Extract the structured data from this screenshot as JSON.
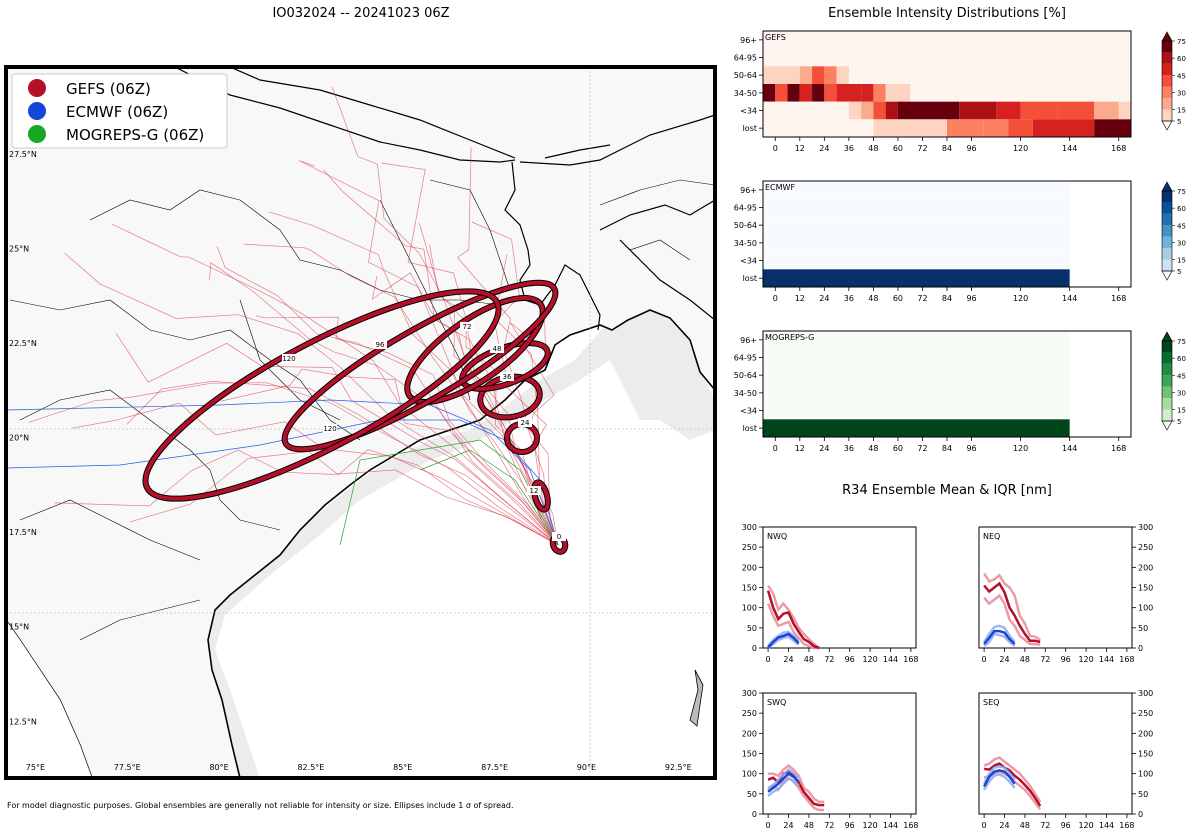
{
  "title": "IO032024 -- 20241023 06Z",
  "footnote": "For model diagnostic purposes. Global ensembles are generally not reliable for intensity or size. Ellipses include 1 σ of spread.",
  "map": {
    "legend": [
      {
        "label": "GEFS (06Z)",
        "color": "#b5102a"
      },
      {
        "label": "ECMWF (06Z)",
        "color": "#1446d9"
      },
      {
        "label": "MOGREPS-G (06Z)",
        "color": "#16a826"
      }
    ],
    "lon_ticks": [
      "75°E",
      "77.5°E",
      "80°E",
      "82.5°E",
      "85°E",
      "87.5°E",
      "90°E",
      "92.5°E"
    ],
    "lat_ticks": [
      "27.5°N",
      "25°N",
      "22.5°N",
      "20°N",
      "17.5°N",
      "15°N",
      "12.5°N"
    ],
    "lon_range": [
      74.2,
      93.5
    ],
    "lat_range": [
      11.0,
      29.8
    ],
    "track_labels": [
      "0",
      "12",
      "24",
      "36",
      "48",
      "72",
      "96",
      "120",
      "120"
    ]
  },
  "chart_data": [
    {
      "type": "heatmap",
      "title": "Ensemble Intensity Distributions [%]",
      "panel": "GEFS",
      "colormap": "Reds",
      "x_ticks": [
        0,
        12,
        24,
        36,
        48,
        60,
        72,
        84,
        96,
        120,
        144,
        168
      ],
      "x_range": [
        -6,
        174
      ],
      "y_categories": [
        "lost",
        "<34",
        "34-50",
        "50-64",
        "64-95",
        "96+"
      ],
      "colorbar_ticks": [
        5,
        15,
        30,
        45,
        60,
        75
      ],
      "cells": [
        {
          "row": "50-64",
          "x0": -6,
          "x1": 12,
          "v": 10
        },
        {
          "row": "50-64",
          "x0": 12,
          "x1": 18,
          "v": 20
        },
        {
          "row": "50-64",
          "x0": 18,
          "x1": 24,
          "v": 45
        },
        {
          "row": "50-64",
          "x0": 24,
          "x1": 30,
          "v": 25
        },
        {
          "row": "50-64",
          "x0": 30,
          "x1": 36,
          "v": 10
        },
        {
          "row": "34-50",
          "x0": -6,
          "x1": 0,
          "v": 80
        },
        {
          "row": "34-50",
          "x0": 0,
          "x1": 6,
          "v": 40
        },
        {
          "row": "34-50",
          "x0": 6,
          "x1": 12,
          "v": 80
        },
        {
          "row": "34-50",
          "x0": 12,
          "x1": 18,
          "v": 55
        },
        {
          "row": "34-50",
          "x0": 18,
          "x1": 24,
          "v": 80
        },
        {
          "row": "34-50",
          "x0": 24,
          "x1": 30,
          "v": 40
        },
        {
          "row": "34-50",
          "x0": 30,
          "x1": 42,
          "v": 60
        },
        {
          "row": "34-50",
          "x0": 42,
          "x1": 48,
          "v": 55
        },
        {
          "row": "34-50",
          "x0": 48,
          "x1": 54,
          "v": 25
        },
        {
          "row": "34-50",
          "x0": 54,
          "x1": 66,
          "v": 8
        },
        {
          "row": "<34",
          "x0": -6,
          "x1": 36,
          "v": 4
        },
        {
          "row": "<34",
          "x0": 36,
          "x1": 42,
          "v": 10
        },
        {
          "row": "<34",
          "x0": 42,
          "x1": 48,
          "v": 20
        },
        {
          "row": "<34",
          "x0": 48,
          "x1": 54,
          "v": 45
        },
        {
          "row": "<34",
          "x0": 54,
          "x1": 60,
          "v": 65
        },
        {
          "row": "<34",
          "x0": 60,
          "x1": 90,
          "v": 80
        },
        {
          "row": "<34",
          "x0": 90,
          "x1": 108,
          "v": 62
        },
        {
          "row": "<34",
          "x0": 108,
          "x1": 120,
          "v": 55
        },
        {
          "row": "<34",
          "x0": 120,
          "x1": 138,
          "v": 40
        },
        {
          "row": "<34",
          "x0": 138,
          "x1": 156,
          "v": 40
        },
        {
          "row": "<34",
          "x0": 156,
          "x1": 168,
          "v": 20
        },
        {
          "row": "<34",
          "x0": 168,
          "x1": 174,
          "v": 8
        },
        {
          "row": "lost",
          "x0": -6,
          "x1": 48,
          "v": 5
        },
        {
          "row": "lost",
          "x0": 48,
          "x1": 84,
          "v": 10
        },
        {
          "row": "lost",
          "x0": 84,
          "x1": 102,
          "v": 25
        },
        {
          "row": "lost",
          "x0": 102,
          "x1": 114,
          "v": 35
        },
        {
          "row": "lost",
          "x0": 114,
          "x1": 126,
          "v": 48
        },
        {
          "row": "lost",
          "x0": 126,
          "x1": 156,
          "v": 60
        },
        {
          "row": "lost",
          "x0": 156,
          "x1": 174,
          "v": 80
        }
      ]
    },
    {
      "type": "heatmap",
      "panel": "ECMWF",
      "colormap": "Blues",
      "x_ticks": [
        0,
        12,
        24,
        36,
        48,
        60,
        72,
        84,
        96,
        120,
        144,
        168
      ],
      "x_range": [
        -6,
        174
      ],
      "y_categories": [
        "lost",
        "<34",
        "34-50",
        "50-64",
        "64-95",
        "96+"
      ],
      "colorbar_ticks": [
        5,
        15,
        30,
        45,
        60,
        75
      ],
      "cells": [
        {
          "row": "96+",
          "x0": -6,
          "x1": 144,
          "v": 1
        },
        {
          "row": "64-95",
          "x0": -6,
          "x1": 144,
          "v": 1
        },
        {
          "row": "50-64",
          "x0": -6,
          "x1": 144,
          "v": 1
        },
        {
          "row": "34-50",
          "x0": -6,
          "x1": 144,
          "v": 1
        },
        {
          "row": "<34",
          "x0": -6,
          "x1": 144,
          "v": 1
        },
        {
          "row": "lost",
          "x0": -6,
          "x1": 144,
          "v": 100
        }
      ]
    },
    {
      "type": "heatmap",
      "panel": "MOGREPS-G",
      "colormap": "Greens",
      "x_ticks": [
        0,
        12,
        24,
        36,
        48,
        60,
        72,
        84,
        96,
        120,
        144,
        168
      ],
      "x_range": [
        -6,
        174
      ],
      "y_categories": [
        "lost",
        "<34",
        "34-50",
        "50-64",
        "64-95",
        "96+"
      ],
      "colorbar_ticks": [
        5,
        15,
        30,
        45,
        60,
        75
      ],
      "cells": [
        {
          "row": "96+",
          "x0": -6,
          "x1": 144,
          "v": 1
        },
        {
          "row": "64-95",
          "x0": -6,
          "x1": 144,
          "v": 1
        },
        {
          "row": "50-64",
          "x0": -6,
          "x1": 144,
          "v": 1
        },
        {
          "row": "34-50",
          "x0": -6,
          "x1": 144,
          "v": 1
        },
        {
          "row": "<34",
          "x0": -6,
          "x1": 144,
          "v": 1
        },
        {
          "row": "lost",
          "x0": -6,
          "x1": 144,
          "v": 100
        }
      ]
    },
    {
      "type": "line",
      "title": "R34 Ensemble Mean & IQR [nm]",
      "quadrant": "NWQ",
      "x_ticks": [
        0,
        24,
        48,
        72,
        96,
        120,
        144,
        168
      ],
      "xlim": [
        -6,
        174
      ],
      "y_ticks": [
        0,
        50,
        100,
        150,
        200,
        250,
        300
      ],
      "ylim": [
        0,
        300
      ],
      "series": [
        {
          "name": "GEFS",
          "color": "#b5102a",
          "x": [
            0,
            6,
            12,
            18,
            24,
            30,
            36,
            42,
            48,
            54,
            60
          ],
          "mean": [
            142,
            100,
            72,
            85,
            88,
            60,
            40,
            22,
            15,
            5,
            0
          ],
          "q25": [
            110,
            80,
            55,
            60,
            65,
            40,
            25,
            10,
            5,
            0,
            0
          ],
          "q75": [
            155,
            135,
            95,
            110,
            95,
            75,
            50,
            35,
            22,
            10,
            0
          ]
        },
        {
          "name": "ECMWF",
          "color": "#1446d9",
          "x": [
            0,
            6,
            12,
            18,
            24,
            30,
            36
          ],
          "mean": [
            2,
            15,
            26,
            30,
            35,
            25,
            12
          ],
          "q25": [
            0,
            10,
            20,
            25,
            28,
            18,
            8
          ],
          "q75": [
            5,
            20,
            30,
            38,
            40,
            30,
            18
          ]
        }
      ]
    },
    {
      "type": "line",
      "quadrant": "NEQ",
      "x_ticks": [
        0,
        24,
        48,
        72,
        96,
        120,
        144,
        168
      ],
      "xlim": [
        -6,
        174
      ],
      "y_ticks": [
        0,
        50,
        100,
        150,
        200,
        250,
        300
      ],
      "ylim": [
        0,
        300
      ],
      "series": [
        {
          "name": "GEFS",
          "color": "#b5102a",
          "x": [
            0,
            6,
            12,
            18,
            24,
            30,
            36,
            42,
            48,
            54,
            60,
            66
          ],
          "mean": [
            155,
            140,
            150,
            160,
            138,
            100,
            80,
            55,
            35,
            18,
            18,
            15
          ],
          "q25": [
            125,
            110,
            120,
            130,
            110,
            70,
            55,
            30,
            20,
            10,
            10,
            8
          ],
          "q75": [
            185,
            165,
            170,
            180,
            160,
            150,
            130,
            80,
            60,
            30,
            28,
            20
          ]
        },
        {
          "name": "ECMWF",
          "color": "#1446d9",
          "x": [
            0,
            6,
            12,
            18,
            24,
            30,
            36
          ],
          "mean": [
            10,
            25,
            42,
            42,
            38,
            22,
            10
          ],
          "q25": [
            5,
            15,
            35,
            32,
            28,
            15,
            5
          ],
          "q75": [
            15,
            35,
            52,
            55,
            50,
            30,
            15
          ]
        }
      ]
    },
    {
      "type": "line",
      "quadrant": "SWQ",
      "x_ticks": [
        0,
        24,
        48,
        72,
        96,
        120,
        144,
        168
      ],
      "xlim": [
        -6,
        174
      ],
      "y_ticks": [
        0,
        50,
        100,
        150,
        200,
        250,
        300
      ],
      "ylim": [
        0,
        300
      ],
      "series": [
        {
          "name": "GEFS",
          "color": "#b5102a",
          "x": [
            0,
            6,
            12,
            18,
            24,
            30,
            36,
            42,
            48,
            54,
            60,
            66
          ],
          "mean": [
            85,
            90,
            78,
            100,
            105,
            95,
            78,
            55,
            40,
            25,
            22,
            22
          ],
          "q25": [
            60,
            70,
            60,
            80,
            90,
            80,
            65,
            45,
            30,
            15,
            10,
            10
          ],
          "q75": [
            100,
            100,
            95,
            110,
            120,
            110,
            95,
            65,
            55,
            38,
            30,
            30
          ]
        },
        {
          "name": "ECMWF",
          "color": "#1446d9",
          "x": [
            0,
            6,
            12,
            18,
            24,
            30,
            36
          ],
          "mean": [
            55,
            65,
            75,
            88,
            100,
            92,
            80
          ],
          "q25": [
            45,
            55,
            62,
            75,
            88,
            82,
            70
          ],
          "q75": [
            65,
            72,
            85,
            98,
            110,
            102,
            90
          ]
        }
      ]
    },
    {
      "type": "line",
      "quadrant": "SEQ",
      "x_ticks": [
        0,
        24,
        48,
        72,
        96,
        120,
        144,
        168
      ],
      "xlim": [
        -6,
        174
      ],
      "y_ticks": [
        0,
        50,
        100,
        150,
        200,
        250,
        300
      ],
      "ylim": [
        0,
        300
      ],
      "series": [
        {
          "name": "GEFS",
          "color": "#b5102a",
          "x": [
            0,
            6,
            12,
            18,
            24,
            30,
            36,
            42,
            48,
            54,
            60,
            66
          ],
          "mean": [
            112,
            110,
            120,
            125,
            115,
            108,
            95,
            85,
            72,
            58,
            40,
            20
          ],
          "q25": [
            90,
            95,
            100,
            105,
            100,
            95,
            80,
            70,
            60,
            45,
            28,
            12
          ],
          "q75": [
            120,
            125,
            135,
            140,
            130,
            120,
            110,
            100,
            85,
            70,
            50,
            30
          ]
        },
        {
          "name": "ECMWF",
          "color": "#1446d9",
          "x": [
            0,
            6,
            12,
            18,
            24,
            30,
            36
          ],
          "mean": [
            68,
            92,
            105,
            108,
            105,
            92,
            75
          ],
          "q25": [
            60,
            80,
            95,
            98,
            92,
            80,
            65
          ],
          "q75": [
            75,
            100,
            115,
            118,
            115,
            100,
            85
          ]
        }
      ]
    }
  ]
}
